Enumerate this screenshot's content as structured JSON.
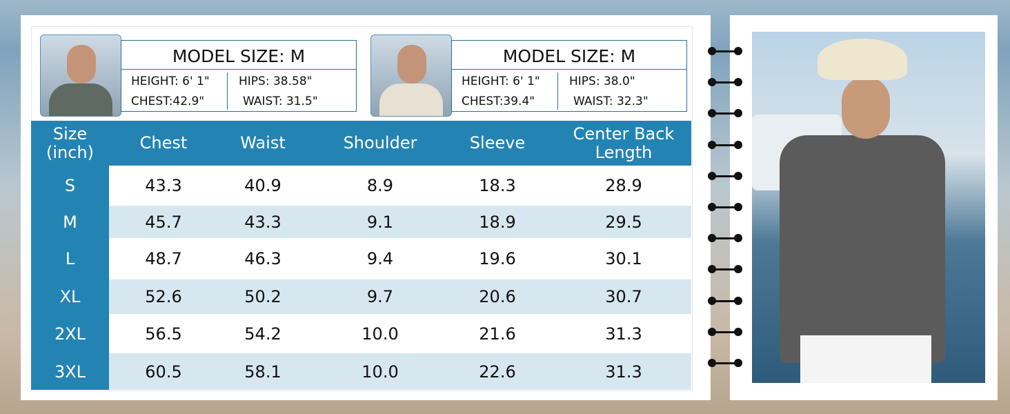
{
  "models": [
    {
      "title": "MODEL SIZE: M",
      "height": "HEIGHT: 6' 1\"",
      "hips": "HIPS: 38.58\"",
      "chest": "CHEST:42.9\"",
      "waist": "WAIST: 31.5\""
    },
    {
      "title": "MODEL SIZE: M",
      "height": "HEIGHT: 6' 1\"",
      "hips": "HIPS: 38.0\"",
      "chest": "CHEST:39.4\"",
      "waist": "WAIST: 32.3\""
    }
  ],
  "table": {
    "header": [
      "Size (inch)",
      "Chest",
      "Waist",
      "Shoulder",
      "Sleeve",
      "Center Back Length"
    ],
    "rows": [
      [
        "S",
        "43.3",
        "40.9",
        "8.9",
        "18.3",
        "28.9"
      ],
      [
        "M",
        "45.7",
        "43.3",
        "9.1",
        "18.9",
        "29.5"
      ],
      [
        "L",
        "48.7",
        "46.3",
        "9.4",
        "19.6",
        "30.1"
      ],
      [
        "XL",
        "52.6",
        "50.2",
        "9.7",
        "20.6",
        "30.7"
      ],
      [
        "2XL",
        "56.5",
        "54.2",
        "10.0",
        "21.6",
        "31.3"
      ],
      [
        "3XL",
        "60.5",
        "58.1",
        "10.0",
        "22.6",
        "31.3"
      ]
    ]
  }
}
